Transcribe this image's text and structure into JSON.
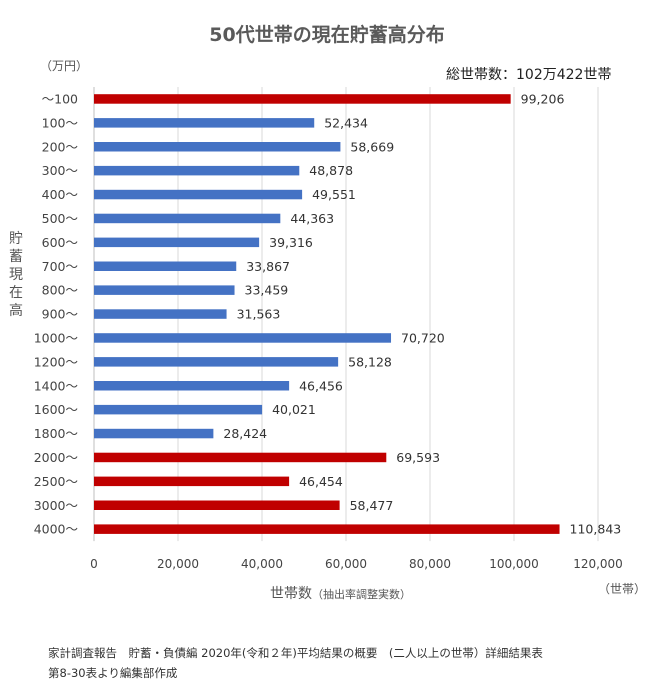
{
  "chart_data": {
    "type": "bar",
    "orientation": "horizontal",
    "title": "50代世帯の現在貯蓄高分布",
    "y_unit": "（万円）",
    "total_label": "総世帯数：102万422世帯",
    "ylabel": "貯蓄現在高",
    "xlabel": "世帯数",
    "xlabel_note": "（抽出率調整実数）",
    "x_unit": "（世帯）",
    "xlim": [
      0,
      120000
    ],
    "x_ticks": [
      "0",
      "20,000",
      "40,000",
      "60,000",
      "80,000",
      "100,000",
      "120,000"
    ],
    "grid": true,
    "categories": [
      "～100",
      "100～",
      "200～",
      "300～",
      "400～",
      "500～",
      "600～",
      "700～",
      "800～",
      "900～",
      "1000～",
      "1200～",
      "1400～",
      "1600～",
      "1800～",
      "2000～",
      "2500～",
      "3000～",
      "4000～"
    ],
    "values": [
      99206,
      52434,
      58669,
      48878,
      49551,
      44363,
      39316,
      33867,
      33459,
      31563,
      70720,
      58128,
      46456,
      40021,
      28424,
      69593,
      46454,
      58477,
      110843
    ],
    "value_labels": [
      "99,206",
      "52,434",
      "58,669",
      "48,878",
      "49,551",
      "44,363",
      "39,316",
      "33,867",
      "33,459",
      "31,563",
      "70,720",
      "58,128",
      "46,456",
      "40,021",
      "28,424",
      "69,593",
      "46,454",
      "58,477",
      "110,843"
    ],
    "highlight": [
      true,
      false,
      false,
      false,
      false,
      false,
      false,
      false,
      false,
      false,
      false,
      false,
      false,
      false,
      false,
      true,
      true,
      true,
      true
    ],
    "colors": {
      "highlight": "#c00000",
      "normal": "#4472c4",
      "grid": "#d9d9d9"
    }
  },
  "source": {
    "line1": "家計調査報告　貯蓄・負債編 2020年(令和２年)平均結果の概要　(二人以上の世帯）詳細結果表",
    "line2": "第8-30表より編集部作成"
  }
}
